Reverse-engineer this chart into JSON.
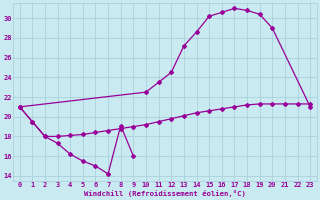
{
  "xlabel": "Windchill (Refroidissement éolien,°C)",
  "bg_color": "#c8eaf0",
  "grid_color": "#a8ccd8",
  "line_color": "#990099",
  "xlim": [
    -0.5,
    23.5
  ],
  "ylim": [
    13.5,
    31.5
  ],
  "xticks": [
    0,
    1,
    2,
    3,
    4,
    5,
    6,
    7,
    8,
    9,
    10,
    11,
    12,
    13,
    14,
    15,
    16,
    17,
    18,
    19,
    20,
    21,
    22,
    23
  ],
  "yticks": [
    14,
    16,
    18,
    20,
    22,
    24,
    26,
    28,
    30
  ],
  "line_upper_x": [
    0,
    10,
    11,
    12,
    13,
    14,
    15,
    16,
    17,
    18,
    19,
    20,
    23
  ],
  "line_upper_y": [
    21,
    22.5,
    23.5,
    24.5,
    27.2,
    28.6,
    30.2,
    30.6,
    31.0,
    30.8,
    30.4,
    29.0,
    21.0
  ],
  "line_mid_x": [
    0,
    1,
    2,
    3,
    4,
    5,
    6,
    7,
    8,
    9,
    10,
    11,
    12,
    13,
    14,
    15,
    16,
    17,
    18,
    19,
    20,
    21,
    22,
    23
  ],
  "line_mid_y": [
    21.0,
    19.5,
    18.0,
    18.0,
    18.1,
    18.2,
    18.4,
    18.6,
    18.8,
    19.0,
    19.2,
    19.5,
    19.8,
    20.1,
    20.4,
    20.6,
    20.8,
    21.0,
    21.2,
    21.3,
    21.3,
    21.3,
    21.3,
    21.3
  ],
  "line_low_x": [
    0,
    1,
    2,
    3,
    4,
    5,
    6,
    7,
    8,
    9
  ],
  "line_low_y": [
    21.0,
    19.5,
    18.0,
    17.3,
    16.2,
    15.5,
    15.0,
    14.2,
    19.1,
    16.0
  ]
}
